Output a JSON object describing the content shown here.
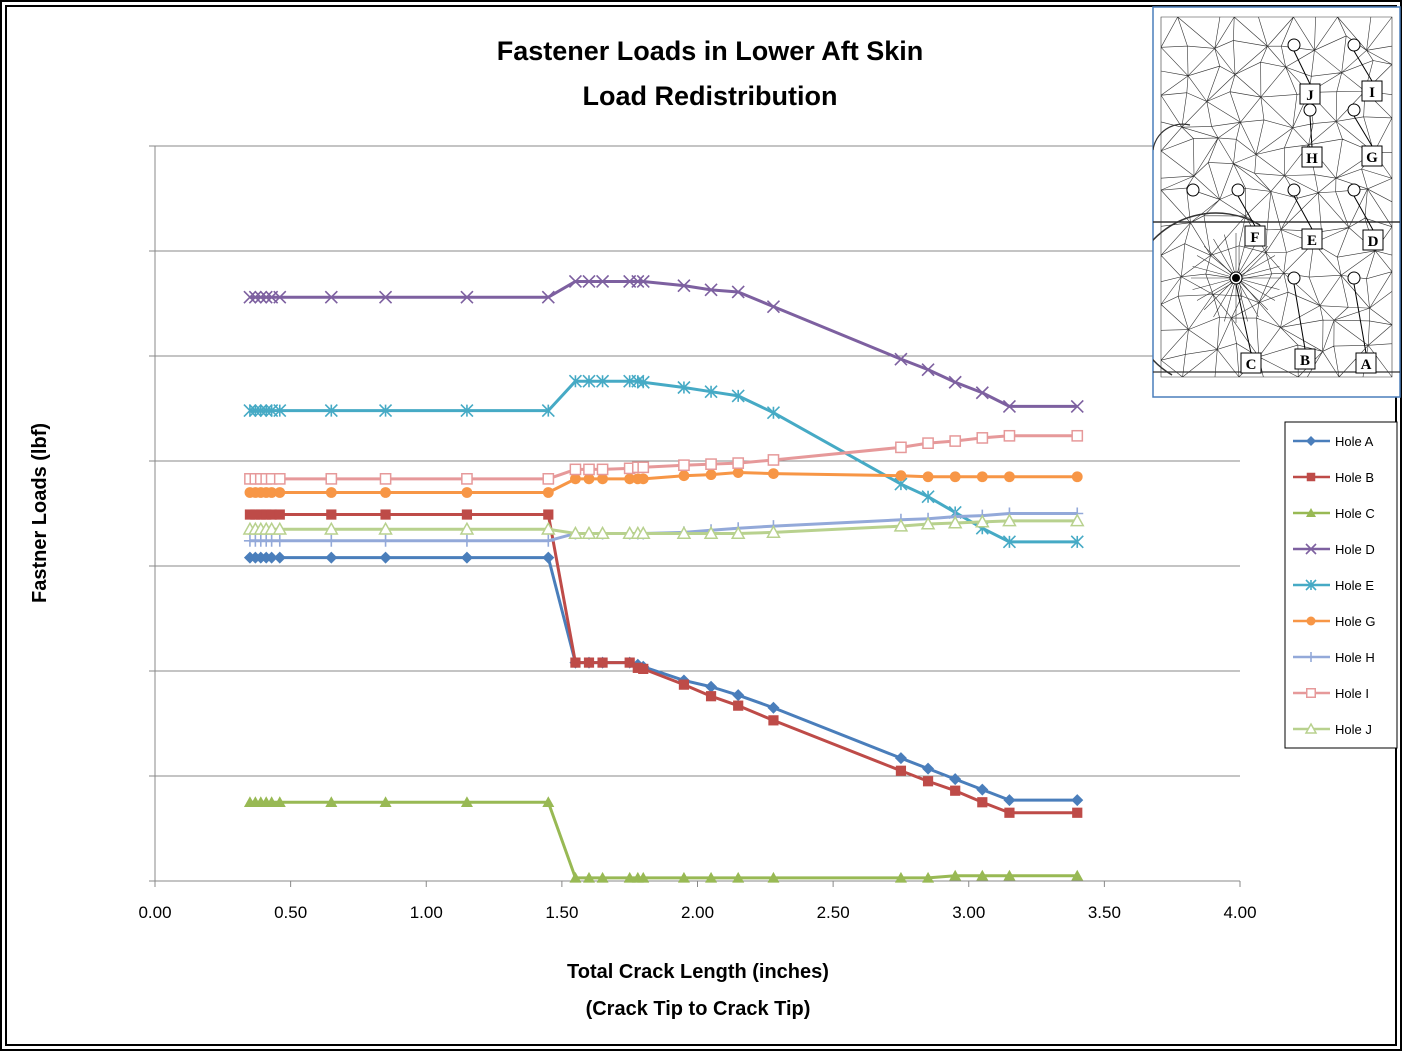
{
  "chart_data": {
    "type": "line",
    "title": [
      "Fastener Loads in Lower Aft Skin",
      "Load Redistribution"
    ],
    "ylabel": "Fastner Loads (lbf)",
    "xlabel": [
      "Total Crack Length (inches)",
      "(Crack Tip to Crack Tip)"
    ],
    "xlim": [
      0,
      4
    ],
    "ylim": [
      0,
      7
    ],
    "xticks": [
      {
        "value": 0,
        "label": "0.00"
      },
      {
        "value": 0.5,
        "label": "0.50"
      },
      {
        "value": 1,
        "label": "1.00"
      },
      {
        "value": 1.5,
        "label": "1.50"
      },
      {
        "value": 2,
        "label": "2.00"
      },
      {
        "value": 2.5,
        "label": "2.50"
      },
      {
        "value": 3,
        "label": "3.00"
      },
      {
        "value": 3.5,
        "label": "3.50"
      },
      {
        "value": 4,
        "label": "4.00"
      }
    ],
    "yticks": [
      0,
      1,
      2,
      3,
      4,
      5,
      6,
      7
    ],
    "ytick_labels": false,
    "grid": true,
    "legend": "right",
    "x": [
      0.35,
      0.37,
      0.39,
      0.41,
      0.43,
      0.46,
      0.65,
      0.85,
      1.15,
      1.45,
      1.55,
      1.6,
      1.65,
      1.75,
      1.78,
      1.8,
      1.95,
      2.05,
      2.15,
      2.28,
      2.75,
      2.85,
      2.95,
      3.05,
      3.15,
      3.4
    ],
    "series": [
      {
        "name": "Hole A",
        "color": "#4a7ebb",
        "marker": "diamond",
        "values": [
          3.08,
          3.08,
          3.08,
          3.08,
          3.08,
          3.08,
          3.08,
          3.08,
          3.08,
          3.08,
          2.08,
          2.08,
          2.08,
          2.08,
          2.06,
          2.04,
          1.91,
          1.85,
          1.77,
          1.65,
          1.17,
          1.07,
          0.97,
          0.87,
          0.77,
          0.77
        ]
      },
      {
        "name": "Hole B",
        "color": "#be4b48",
        "marker": "square",
        "values": [
          3.49,
          3.49,
          3.49,
          3.49,
          3.49,
          3.49,
          3.49,
          3.49,
          3.49,
          3.49,
          2.08,
          2.08,
          2.08,
          2.08,
          2.03,
          2.02,
          1.87,
          1.76,
          1.67,
          1.53,
          1.05,
          0.95,
          0.86,
          0.75,
          0.65,
          0.65
        ]
      },
      {
        "name": "Hole C",
        "color": "#98b954",
        "marker": "triangle",
        "values": [
          0.75,
          0.75,
          0.75,
          0.75,
          0.75,
          0.75,
          0.75,
          0.75,
          0.75,
          0.75,
          0.03,
          0.03,
          0.03,
          0.03,
          0.03,
          0.03,
          0.03,
          0.03,
          0.03,
          0.03,
          0.03,
          0.03,
          0.05,
          0.05,
          0.05,
          0.05
        ]
      },
      {
        "name": "Hole D",
        "color": "#7d60a0",
        "marker": "x",
        "values": [
          5.56,
          5.56,
          5.56,
          5.56,
          5.56,
          5.56,
          5.56,
          5.56,
          5.56,
          5.56,
          5.71,
          5.71,
          5.71,
          5.71,
          5.71,
          5.71,
          5.67,
          5.63,
          5.61,
          5.47,
          4.97,
          4.87,
          4.75,
          4.65,
          4.52,
          4.52
        ]
      },
      {
        "name": "Hole E",
        "color": "#46aac5",
        "marker": "star",
        "values": [
          4.48,
          4.48,
          4.48,
          4.48,
          4.48,
          4.48,
          4.48,
          4.48,
          4.48,
          4.48,
          4.76,
          4.76,
          4.76,
          4.76,
          4.76,
          4.75,
          4.7,
          4.66,
          4.62,
          4.46,
          3.78,
          3.66,
          3.51,
          3.36,
          3.23,
          3.23
        ]
      },
      {
        "name": "Hole G",
        "color": "#f79646",
        "marker": "circle",
        "values": [
          3.7,
          3.7,
          3.7,
          3.7,
          3.7,
          3.7,
          3.7,
          3.7,
          3.7,
          3.7,
          3.83,
          3.83,
          3.83,
          3.83,
          3.83,
          3.83,
          3.86,
          3.87,
          3.89,
          3.88,
          3.86,
          3.85,
          3.85,
          3.85,
          3.85,
          3.85
        ]
      },
      {
        "name": "Hole H",
        "color": "#93a9d9",
        "marker": "plus",
        "values": [
          3.24,
          3.24,
          3.24,
          3.24,
          3.24,
          3.24,
          3.24,
          3.24,
          3.24,
          3.24,
          3.31,
          3.31,
          3.31,
          3.31,
          3.31,
          3.31,
          3.32,
          3.34,
          3.36,
          3.38,
          3.44,
          3.45,
          3.47,
          3.48,
          3.5,
          3.5
        ]
      },
      {
        "name": "Hole I",
        "color": "#e6999a",
        "marker": "open-square",
        "values": [
          3.83,
          3.83,
          3.83,
          3.83,
          3.83,
          3.83,
          3.83,
          3.83,
          3.83,
          3.83,
          3.92,
          3.92,
          3.92,
          3.93,
          3.94,
          3.94,
          3.96,
          3.97,
          3.98,
          4.01,
          4.13,
          4.17,
          4.19,
          4.22,
          4.24,
          4.24
        ]
      },
      {
        "name": "Hole J",
        "color": "#b8d18e",
        "marker": "open-triangle",
        "values": [
          3.35,
          3.35,
          3.35,
          3.35,
          3.35,
          3.35,
          3.35,
          3.35,
          3.35,
          3.35,
          3.31,
          3.31,
          3.31,
          3.31,
          3.31,
          3.31,
          3.31,
          3.31,
          3.31,
          3.32,
          3.38,
          3.4,
          3.41,
          3.42,
          3.43,
          3.43
        ]
      }
    ]
  },
  "inset": {
    "labels": [
      "A",
      "B",
      "C",
      "D",
      "E",
      "F",
      "G",
      "H",
      "I",
      "J"
    ]
  }
}
